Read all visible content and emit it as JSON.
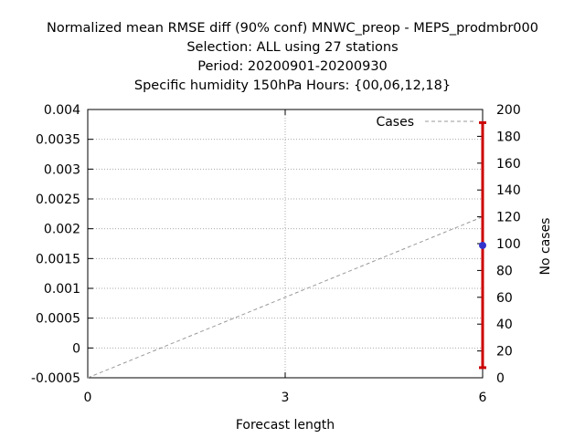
{
  "chart_data": {
    "type": "line",
    "title": [
      "Normalized mean RMSE diff (90% conf) MNWC_preop - MEPS_prodmbr000",
      "Selection: ALL using    27 stations",
      "Period: 20200901-20200930",
      "Specific humidity 150hPa   Hours: {00,06,12,18}"
    ],
    "xlabel": "Forecast length",
    "ylabel_right": "No cases",
    "x_ticks": [
      "0",
      "3",
      "6"
    ],
    "xlim": [
      0,
      6
    ],
    "y_ticks": [
      "0.004",
      "0.0035",
      "0.003",
      "0.0025",
      "0.002",
      "0.0015",
      "0.001",
      "0.0005",
      "0",
      "-0.0005"
    ],
    "ylim": [
      -0.0005,
      0.004
    ],
    "y2_ticks": [
      "200",
      "180",
      "160",
      "140",
      "120",
      "100",
      "80",
      "60",
      "40",
      "20",
      "0"
    ],
    "y2lim": [
      0,
      200
    ],
    "grid": true,
    "legend_position": "top-right",
    "series": [
      {
        "name": "Cases",
        "axis": "y2",
        "style": "dashed",
        "color": "#999999",
        "x": [
          0,
          6
        ],
        "values": [
          0,
          120
        ]
      },
      {
        "name": "",
        "axis": "y",
        "style": "point-with-errorbar",
        "color": "#3333cc",
        "error_color": "#cc0000",
        "x": [
          6
        ],
        "values": [
          0.00172
        ],
        "error_low": [
          -0.00033
        ],
        "error_high": [
          0.00378
        ]
      }
    ]
  }
}
